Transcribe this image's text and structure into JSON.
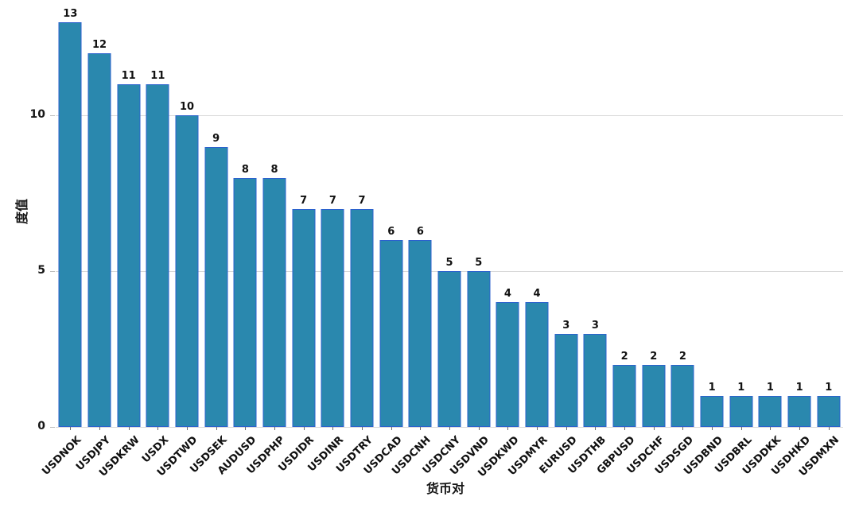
{
  "chart_data": {
    "type": "bar",
    "title": "",
    "xlabel": "货币对",
    "ylabel": "度值",
    "categories": [
      "USDNOK",
      "USDJPY",
      "USDKRW",
      "USDX",
      "USDTWD",
      "USDSEK",
      "AUDUSD",
      "USDPHP",
      "USDIDR",
      "USDINR",
      "USDTRY",
      "USDCAD",
      "USDCNH",
      "USDCNY",
      "USDVND",
      "USDKWD",
      "USDMYR",
      "EURUSD",
      "USDTHB",
      "GBPUSD",
      "USDCHF",
      "USDSGD",
      "USDBND",
      "USDBRL",
      "USDDKK",
      "USDHKD",
      "USDMXN"
    ],
    "values": [
      13,
      12,
      11,
      11,
      10,
      9,
      8,
      8,
      7,
      7,
      7,
      6,
      6,
      5,
      5,
      4,
      4,
      3,
      3,
      2,
      2,
      2,
      1,
      1,
      1,
      1,
      1
    ],
    "yticks": [
      0,
      5,
      10
    ],
    "ylim": [
      0,
      13.2
    ],
    "grid": "horizontal",
    "legend": "none",
    "bar_fill": "#2a88ae",
    "bar_edge": "#2b62cd",
    "gridline_color": "#d9d9d9",
    "text_color": "#101010",
    "background": "#ffffff"
  }
}
